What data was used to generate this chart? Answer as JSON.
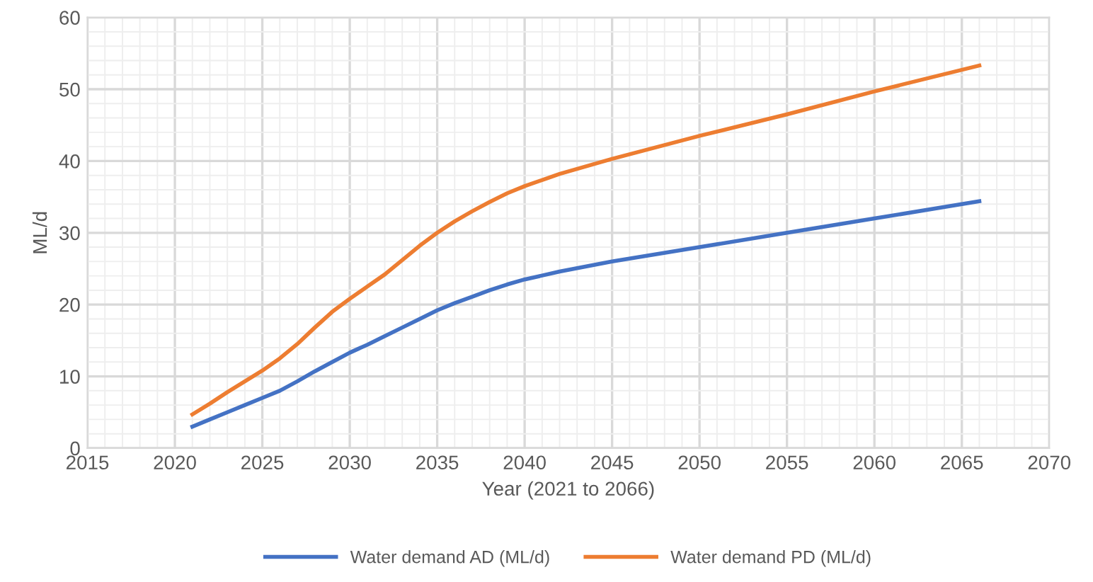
{
  "chart_data": {
    "type": "line",
    "xlabel": "Year (2021 to 2066)",
    "ylabel": "ML/d",
    "x": [
      2021,
      2022,
      2023,
      2024,
      2025,
      2026,
      2027,
      2028,
      2029,
      2030,
      2031,
      2032,
      2033,
      2034,
      2035,
      2036,
      2037,
      2038,
      2039,
      2040,
      2042,
      2045,
      2050,
      2055,
      2060,
      2066
    ],
    "series": [
      {
        "name": "Water demand AD (ML/d)",
        "color": "#4472c4",
        "values": [
          3.0,
          4.0,
          5.0,
          6.0,
          7.0,
          8.0,
          9.3,
          10.7,
          12.0,
          13.3,
          14.4,
          15.6,
          16.8,
          18.0,
          19.2,
          20.2,
          21.1,
          22.0,
          22.8,
          23.5,
          24.6,
          26.0,
          28.0,
          30.0,
          32.0,
          34.4
        ]
      },
      {
        "name": "Water demand PD (ML/d)",
        "color": "#ed7d31",
        "values": [
          4.7,
          6.2,
          7.8,
          9.3,
          10.8,
          12.5,
          14.5,
          16.8,
          19.0,
          20.8,
          22.5,
          24.2,
          26.2,
          28.2,
          30.0,
          31.6,
          33.0,
          34.3,
          35.5,
          36.5,
          38.2,
          40.3,
          43.5,
          46.5,
          49.7,
          53.3
        ]
      }
    ],
    "xlim": [
      2015,
      2070
    ],
    "xticks": [
      2015,
      2020,
      2025,
      2030,
      2035,
      2040,
      2045,
      2050,
      2055,
      2060,
      2065,
      2070
    ],
    "ylim": [
      0,
      60
    ],
    "yticks": [
      0,
      10,
      20,
      30,
      40,
      50,
      60
    ],
    "grid": true,
    "legend": "bottom",
    "marker": "none",
    "line_style": "solid"
  }
}
